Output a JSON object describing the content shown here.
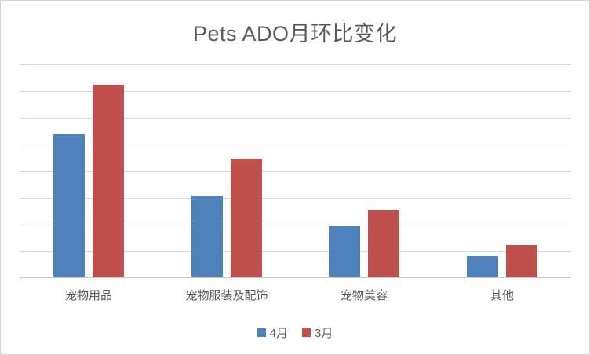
{
  "chart_data": {
    "type": "bar",
    "title": "Pets ADO月环比变化",
    "categories": [
      "宠物用品",
      "宠物服装及配饰",
      "宠物美容",
      "其他"
    ],
    "series": [
      {
        "name": "4月",
        "color": "#4F81BD",
        "values": [
          5.35,
          3.05,
          1.9,
          0.8
        ]
      },
      {
        "name": "3月",
        "color": "#C0504D",
        "values": [
          7.2,
          4.45,
          2.5,
          1.2
        ]
      }
    ],
    "xlabel": "",
    "ylabel": "",
    "ylim": [
      0,
      8
    ],
    "y_tick_labels": [],
    "grid": "horizontal-only",
    "gridline_count": 9,
    "legend_position": "bottom"
  },
  "styles": {
    "title_color": "#595959",
    "category_label_color": "#595959",
    "gridline_color": "#d9d9d9",
    "axis_line_color": "#c9c9c9",
    "background": "#ffffff",
    "border_color": "#d4d4d4"
  }
}
